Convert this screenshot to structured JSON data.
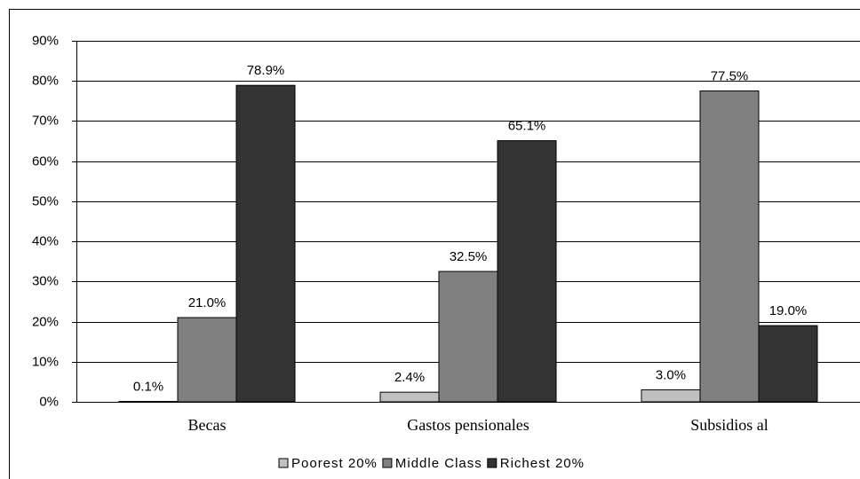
{
  "chart_data": {
    "type": "bar",
    "categories": [
      "Becas",
      "Gastos pensionales",
      "Subsidios al"
    ],
    "series": [
      {
        "name": "Poorest 20%",
        "color": "#c0c0c0",
        "values": [
          0.1,
          2.4,
          3.0
        ],
        "value_labels": [
          "0.1%",
          "2.4%",
          "3.0%"
        ]
      },
      {
        "name": "Middle Class",
        "color": "#808080",
        "values": [
          21.0,
          32.5,
          77.5
        ],
        "value_labels": [
          "21.0%",
          "32.5%",
          "77.5%"
        ]
      },
      {
        "name": "Richest 20%",
        "color": "#333333",
        "values": [
          78.9,
          65.1,
          19.0
        ],
        "value_labels": [
          "78.9%",
          "65.1%",
          "19.0%"
        ]
      }
    ],
    "ylim": [
      0,
      90
    ],
    "yticks": [
      {
        "value": 0,
        "label": "0%"
      },
      {
        "value": 10,
        "label": "10%"
      },
      {
        "value": 20,
        "label": "20%"
      },
      {
        "value": 30,
        "label": "30%"
      },
      {
        "value": 40,
        "label": "40%"
      },
      {
        "value": 50,
        "label": "50%"
      },
      {
        "value": 60,
        "label": "60%"
      },
      {
        "value": 70,
        "label": "70%"
      },
      {
        "value": 80,
        "label": "80%"
      },
      {
        "value": 90,
        "label": "90%"
      }
    ],
    "grid": true
  }
}
